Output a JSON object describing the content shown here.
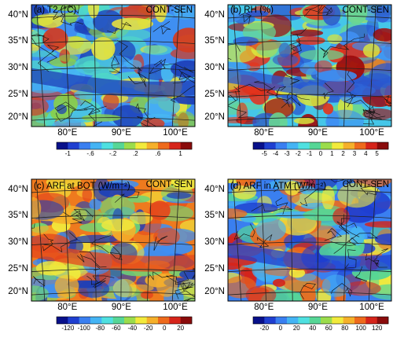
{
  "panels": [
    {
      "id": "a",
      "title": "(a) T2 (°C)",
      "tag": "CONT-SEN",
      "lat_labels": [
        "40°N",
        "35°N",
        "30°N",
        "25°N",
        "20°N"
      ],
      "lon_labels": [
        "80°E",
        "90°E",
        "100°E"
      ],
      "colorbar_ticks": [
        "-1",
        "-.6",
        "-.2",
        ".2",
        ".6",
        "1"
      ],
      "colorbar_colors": [
        "#08108a",
        "#1f3fd0",
        "#3a7ff0",
        "#44b4f4",
        "#4fe0e0",
        "#56d696",
        "#9bdc4c",
        "#f2ea3c",
        "#f5b02a",
        "#ee6a1c",
        "#d6241a",
        "#8a0b0b"
      ],
      "map_colors": [
        "#3f8ff2",
        "#1d3fb8",
        "#47b8f2",
        "#4fd8c8",
        "#8ad048",
        "#e8e23e",
        "#d23c22"
      ]
    },
    {
      "id": "b",
      "title": "(b) RH (%)",
      "tag": "CONT-SEN",
      "lat_labels": [
        "40°N",
        "35°N",
        "30°N",
        "25°N",
        "20°N"
      ],
      "lon_labels": [
        "80°E",
        "90°E",
        "100°E"
      ],
      "colorbar_ticks": [
        "-5",
        "-4",
        "-3",
        "-2",
        "-1",
        "0",
        "1",
        "2",
        "3",
        "4",
        "5"
      ],
      "colorbar_colors": [
        "#08108a",
        "#1f3fd0",
        "#3a7ff0",
        "#44b4f4",
        "#4fe0e0",
        "#56d696",
        "#9bdc4c",
        "#f2ea3c",
        "#f5b02a",
        "#ee6a1c",
        "#d6241a",
        "#8a0b0b"
      ],
      "map_colors": [
        "#45c6e8",
        "#2a58d0",
        "#6ad690",
        "#d8e43e",
        "#e4341c",
        "#a00c0c",
        "#3f8ff2"
      ]
    },
    {
      "id": "c",
      "title": "(c) ARF at BOT (W/m⁻²)",
      "tag": "CONT-SEN",
      "lat_labels": [
        "40°N",
        "35°N",
        "30°N",
        "25°N",
        "20°N"
      ],
      "lon_labels": [
        "80°E",
        "90°E",
        "100°E"
      ],
      "colorbar_ticks": [
        "-120",
        "-100",
        "-80",
        "-60",
        "-40",
        "-20",
        "0",
        "20"
      ],
      "colorbar_colors": [
        "#08108a",
        "#1f3fd0",
        "#3a7ff0",
        "#44b4f4",
        "#4fe0e0",
        "#56d696",
        "#9bdc4c",
        "#f2ea3c",
        "#f5b02a",
        "#ee6a1c",
        "#d6241a",
        "#8a0b0b"
      ],
      "map_colors": [
        "#ee7a1e",
        "#e4481c",
        "#f5b02a",
        "#6ed678",
        "#3f8ff2",
        "#1d3fb8",
        "#f2ea3c"
      ]
    },
    {
      "id": "d",
      "title": "(d) ARF in ATM (W/m⁻²)",
      "tag": "CONT-SEN",
      "lat_labels": [
        "40°N",
        "35°N",
        "30°N",
        "25°N",
        "20°N"
      ],
      "lon_labels": [
        "80°E",
        "90°E",
        "100°E"
      ],
      "colorbar_ticks": [
        "-20",
        "0",
        "20",
        "40",
        "60",
        "80",
        "100",
        "120"
      ],
      "colorbar_colors": [
        "#08108a",
        "#1f3fd0",
        "#3a7ff0",
        "#44b4f4",
        "#4fe0e0",
        "#56d696",
        "#9bdc4c",
        "#f2ea3c",
        "#f5b02a",
        "#ee6a1c",
        "#d6241a",
        "#8a0b0b"
      ],
      "map_colors": [
        "#3a7ff0",
        "#1f3fd0",
        "#44b4f4",
        "#56d696",
        "#f2ea3c",
        "#ee6a1c",
        "#d6241a"
      ]
    }
  ]
}
